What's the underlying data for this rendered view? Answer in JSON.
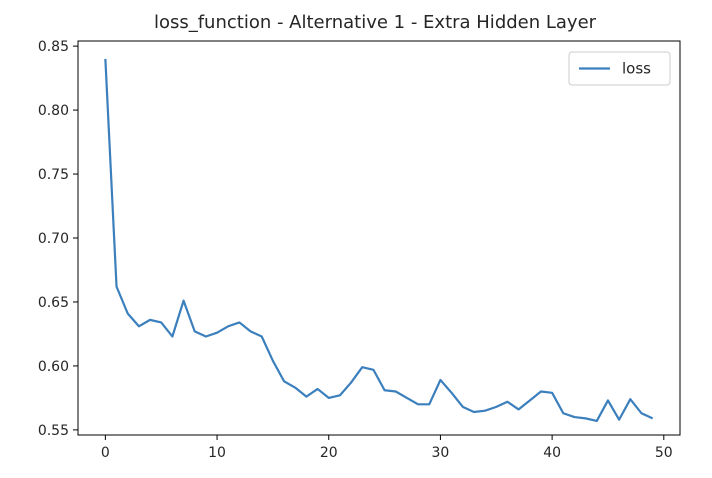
{
  "chart_data": {
    "type": "line",
    "title": "loss_function - Alternative 1 - Extra Hidden Layer",
    "xlabel": "",
    "ylabel": "",
    "xlim": [
      -2.45,
      51.45
    ],
    "ylim": [
      0.546,
      0.854
    ],
    "xticks": [
      0,
      10,
      20,
      30,
      40,
      50
    ],
    "yticks": [
      0.55,
      0.6,
      0.65,
      0.7,
      0.75,
      0.8,
      0.85
    ],
    "ytick_labels": [
      "0.55",
      "0.60",
      "0.65",
      "0.70",
      "0.75",
      "0.80",
      "0.85"
    ],
    "grid": false,
    "legend_position": "top-right",
    "series": [
      {
        "name": "loss",
        "color": "#3b7fbd",
        "x": [
          0,
          1,
          2,
          3,
          4,
          5,
          6,
          7,
          8,
          9,
          10,
          11,
          12,
          13,
          14,
          15,
          16,
          17,
          18,
          19,
          20,
          21,
          22,
          23,
          24,
          25,
          26,
          27,
          28,
          29,
          30,
          31,
          32,
          33,
          34,
          35,
          36,
          37,
          38,
          39,
          40,
          41,
          42,
          43,
          44,
          45,
          46,
          47,
          48,
          49
        ],
        "values": [
          0.84,
          0.662,
          0.641,
          0.631,
          0.636,
          0.634,
          0.623,
          0.651,
          0.627,
          0.623,
          0.626,
          0.631,
          0.634,
          0.627,
          0.623,
          0.604,
          0.588,
          0.583,
          0.576,
          0.582,
          0.575,
          0.577,
          0.587,
          0.599,
          0.597,
          0.581,
          0.58,
          0.575,
          0.57,
          0.57,
          0.589,
          0.579,
          0.568,
          0.564,
          0.565,
          0.568,
          0.572,
          0.566,
          0.573,
          0.58,
          0.579,
          0.563,
          0.56,
          0.559,
          0.557,
          0.573,
          0.558,
          0.574,
          0.563,
          0.559
        ]
      }
    ]
  }
}
